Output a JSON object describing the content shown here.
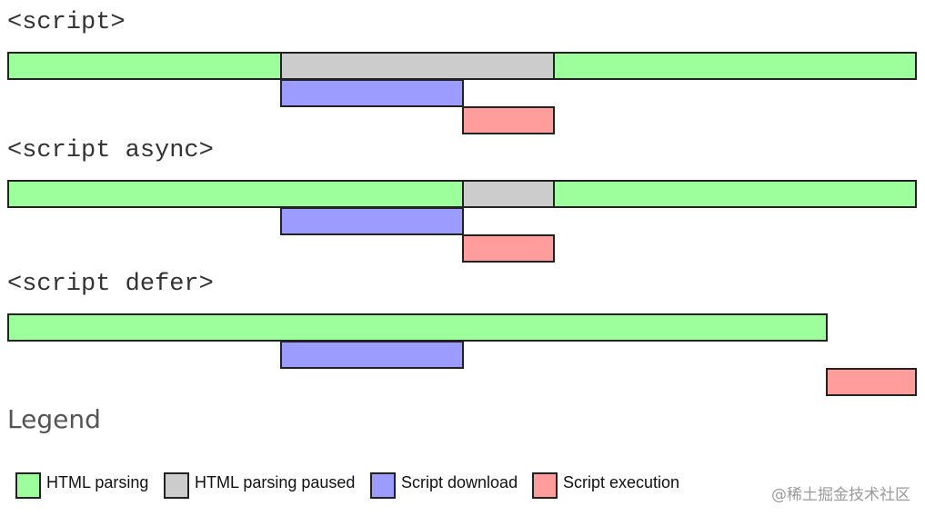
{
  "colors": {
    "html_parsing": "#9cff9c",
    "html_parsing_paused": "#cccccc",
    "script_download": "#9c9cff",
    "script_execution": "#ff9c9c"
  },
  "sections": [
    {
      "label": "<script>"
    },
    {
      "label": "<script async>"
    },
    {
      "label": "<script defer>"
    }
  ],
  "legend": {
    "title": "Legend",
    "items": [
      {
        "label": "HTML parsing",
        "color": "#9cff9c",
        "icon": "green-swatch"
      },
      {
        "label": "HTML parsing paused",
        "color": "#cccccc",
        "icon": "gray-swatch"
      },
      {
        "label": "Script download",
        "color": "#9c9cff",
        "icon": "blue-swatch"
      },
      {
        "label": "Script execution",
        "color": "#ff9c9c",
        "icon": "red-swatch"
      }
    ]
  },
  "watermark": "@稀土掘金技术社区"
}
